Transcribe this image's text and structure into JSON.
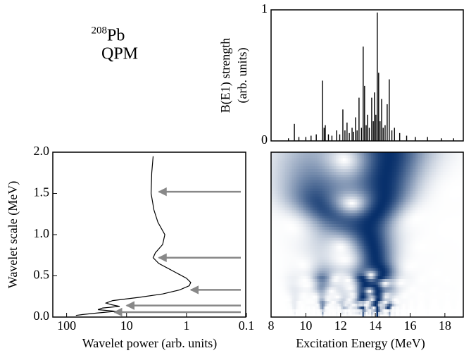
{
  "label": {
    "mass": "208",
    "element": "Pb",
    "model": "QPM"
  },
  "chart_data": [
    {
      "type": "bar",
      "ylabel": [
        "B(E1) strength",
        "(arb. units)"
      ],
      "color": "#000000",
      "xlim": [
        8,
        19.1
      ],
      "ylim": [
        0,
        1
      ],
      "yticks": [
        0,
        1
      ],
      "x": [
        9.0,
        9.34,
        9.6,
        10.0,
        10.3,
        10.6,
        10.96,
        11.05,
        11.12,
        11.3,
        11.5,
        11.77,
        11.95,
        12.13,
        12.25,
        12.37,
        12.5,
        12.66,
        12.75,
        12.86,
        12.95,
        13.06,
        13.2,
        13.3,
        13.38,
        13.47,
        13.55,
        13.65,
        13.79,
        13.88,
        13.95,
        14.03,
        14.11,
        14.19,
        14.27,
        14.36,
        14.45,
        14.56,
        14.68,
        14.8,
        14.95,
        15.1,
        15.4,
        15.8,
        16.3,
        17.0,
        17.8,
        18.5
      ],
      "values": [
        0.02,
        0.13,
        0.03,
        0.03,
        0.04,
        0.05,
        0.46,
        0.1,
        0.12,
        0.05,
        0.04,
        0.08,
        0.05,
        0.24,
        0.08,
        0.14,
        0.06,
        0.1,
        0.07,
        0.18,
        0.08,
        0.33,
        0.1,
        0.72,
        0.42,
        0.12,
        0.2,
        0.1,
        0.33,
        0.15,
        0.37,
        0.2,
        0.98,
        0.52,
        0.15,
        0.32,
        0.1,
        0.12,
        0.28,
        0.47,
        0.08,
        0.1,
        0.06,
        0.04,
        0.03,
        0.03,
        0.02,
        0.02
      ]
    },
    {
      "type": "line",
      "ylabel": "Wavelet scale (MeV)",
      "xlabel": "Wavelet power (arb. units)",
      "color": "#000000",
      "xscale": "log",
      "xlim": [
        170,
        0.1
      ],
      "xticks": [
        100,
        10,
        1,
        0.1
      ],
      "ylim": [
        0,
        2
      ],
      "yticks": [
        {
          "value": 0,
          "label": "0.0"
        },
        {
          "value": 0.5,
          "label": "0.5"
        },
        {
          "value": 1,
          "label": "1.0"
        },
        {
          "value": 1.5,
          "label": "1.5"
        },
        {
          "value": 2,
          "label": "2.0"
        }
      ],
      "x": [
        3.6,
        3.8,
        3.9,
        3.5,
        3.0,
        2.3,
        2.5,
        3.3,
        3.6,
        2.9,
        1.6,
        1.0,
        0.85,
        0.9,
        1.3,
        2.5,
        6,
        17,
        22,
        18,
        13,
        25,
        30,
        15,
        30,
        55,
        70
      ],
      "values": [
        1.95,
        1.75,
        1.5,
        1.3,
        1.15,
        1.0,
        0.88,
        0.78,
        0.72,
        0.65,
        0.55,
        0.47,
        0.42,
        0.38,
        0.33,
        0.28,
        0.24,
        0.2,
        0.17,
        0.15,
        0.13,
        0.11,
        0.09,
        0.07,
        0.05,
        0.03,
        0.02
      ],
      "arrows": {
        "color": "#888888",
        "values": [
          1.52,
          0.72,
          0.33,
          0.14,
          0.06
        ],
        "x": [
          2.9,
          2.9,
          0.85,
          10,
          16
        ]
      }
    },
    {
      "type": "heatmap",
      "xlabel": "Excitation Energy (MeV)",
      "colormap": [
        "#ffffff",
        "#08306b"
      ],
      "xlim": [
        8,
        19.1
      ],
      "xticks": [
        8,
        10,
        12,
        14,
        16,
        18
      ],
      "ylim": [
        0,
        2
      ]
    }
  ]
}
